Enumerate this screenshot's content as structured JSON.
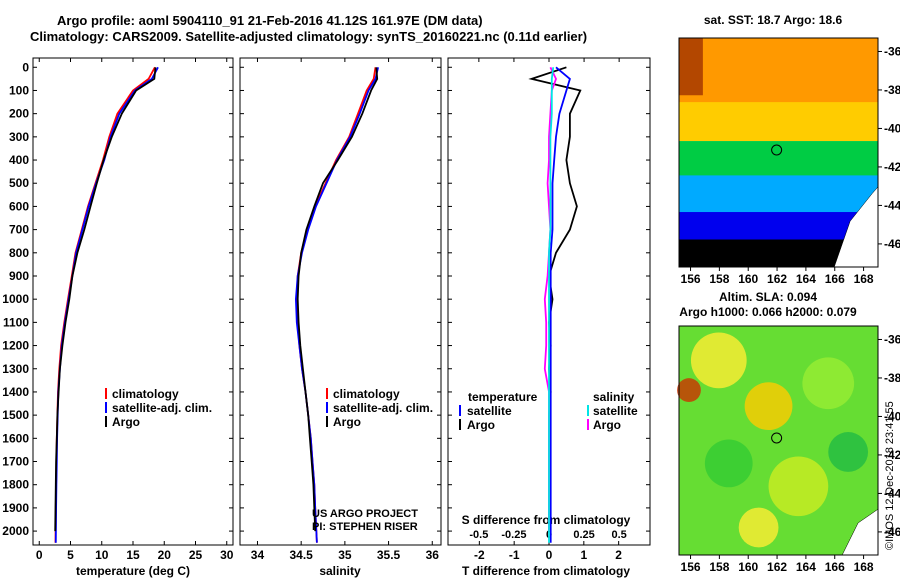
{
  "header": {
    "title_line1": "Argo profile: aoml 5904110_91 21-Feb-2016 41.12S 161.97E (DM data)",
    "title_line2": "Climatology: CARS2009. Satellite-adjusted climatology: synTS_20160221.nc (0.11d earlier)"
  },
  "side_stamp": "©IMOS 12-Dec-2018 23:41:55",
  "colors": {
    "climatology": "#ff0000",
    "satellite": "#0000ff",
    "argo": "#000000",
    "sat_t_diff": "#0000ff",
    "sat_s_diff": "#00e5e5",
    "argo_s_diff": "#ff00ff"
  },
  "panels": {
    "temperature": {
      "xlabel": "temperature (deg C)",
      "ticks": [
        "0",
        "5",
        "10",
        "15",
        "20",
        "25",
        "30"
      ],
      "legend": [
        "climatology",
        "satellite-adj. clim.",
        "Argo"
      ]
    },
    "salinity": {
      "xlabel": "salinity",
      "ticks": [
        "34",
        "34.5",
        "35",
        "35.5",
        "36"
      ],
      "legend": [
        "climatology",
        "satellite-adj. clim.",
        "Argo"
      ],
      "credit1": "US ARGO PROJECT",
      "credit2": "PI: STEPHEN RISER"
    },
    "difference": {
      "xlabel": "T difference from climatology",
      "s_label": "S difference from climatology",
      "t_ticks": [
        "-2",
        "-1",
        "0",
        "1",
        "2"
      ],
      "s_ticks": [
        "-0.5",
        "-0.25",
        "0",
        "0.25",
        "0.5"
      ],
      "legend_t_head": "temperature",
      "legend_s_head": "salinity",
      "legend_satellite": "satellite",
      "legend_argo": "Argo"
    }
  },
  "depth_ticks": [
    "0",
    "100",
    "200",
    "300",
    "400",
    "500",
    "600",
    "700",
    "800",
    "900",
    "1000",
    "1100",
    "1200",
    "1300",
    "1400",
    "1500",
    "1600",
    "1700",
    "1800",
    "1900",
    "2000"
  ],
  "maps": {
    "sst_title": "sat. SST: 18.7 Argo: 18.6",
    "sla_title1": "Altim. SLA: 0.094",
    "sla_title2": "Argo h1000: 0.066 h2000: 0.079",
    "lat_ticks": [
      "-36",
      "-38",
      "-40",
      "-42",
      "-44",
      "-46"
    ],
    "lon_ticks": [
      "156",
      "158",
      "160",
      "162",
      "164",
      "166",
      "168"
    ]
  },
  "chart_data": [
    {
      "type": "line",
      "title": "",
      "xlabel": "temperature (deg C)",
      "ylabel": "",
      "xlim": [
        -1,
        31
      ],
      "ylim": [
        2060,
        -40
      ],
      "series": [
        {
          "name": "climatology",
          "x": [
            18.5,
            17.5,
            15.0,
            12.5,
            11.2,
            10.2,
            9.0,
            7.8,
            6.8,
            5.8,
            5.2,
            4.6,
            4.0,
            3.5,
            3.2,
            3.0,
            2.9,
            2.8,
            2.75,
            2.7,
            2.65,
            2.6
          ],
          "y": [
            0,
            50,
            100,
            200,
            300,
            400,
            500,
            600,
            700,
            800,
            900,
            1000,
            1100,
            1200,
            1300,
            1400,
            1500,
            1600,
            1700,
            1800,
            1900,
            2050
          ]
        },
        {
          "name": "satellite-adj. clim.",
          "x": [
            19.0,
            18.0,
            15.3,
            12.8,
            11.4,
            10.4,
            9.1,
            7.9,
            6.9,
            5.9,
            5.3,
            4.7,
            4.1,
            3.6,
            3.3,
            3.05,
            2.95,
            2.85,
            2.8,
            2.75,
            2.7,
            2.65
          ],
          "y": [
            0,
            50,
            100,
            200,
            300,
            400,
            500,
            600,
            700,
            800,
            900,
            1000,
            1100,
            1200,
            1300,
            1400,
            1500,
            1600,
            1700,
            1800,
            1900,
            2050
          ]
        },
        {
          "name": "Argo",
          "x": [
            18.6,
            18.4,
            15.5,
            13.2,
            11.6,
            10.3,
            9.2,
            8.2,
            7.2,
            6.1,
            5.3,
            4.8,
            4.2,
            3.7,
            3.3,
            3.1,
            2.9,
            2.8,
            2.7,
            2.65,
            2.6,
            2.55
          ],
          "y": [
            0,
            50,
            100,
            200,
            300,
            400,
            500,
            600,
            700,
            800,
            900,
            1000,
            1100,
            1200,
            1300,
            1400,
            1500,
            1600,
            1700,
            1800,
            1900,
            2000
          ]
        }
      ]
    },
    {
      "type": "line",
      "title": "",
      "xlabel": "salinity",
      "ylabel": "",
      "xlim": [
        33.8,
        36.1
      ],
      "ylim": [
        2060,
        -40
      ],
      "series": [
        {
          "name": "climatology",
          "x": [
            35.35,
            35.33,
            35.25,
            35.15,
            35.05,
            34.9,
            34.78,
            34.66,
            34.57,
            34.5,
            34.46,
            34.45,
            34.46,
            34.48,
            34.51,
            34.55,
            34.58,
            34.61,
            34.63,
            34.65,
            34.66,
            34.68
          ],
          "y": [
            0,
            50,
            100,
            200,
            300,
            400,
            500,
            600,
            700,
            800,
            900,
            1000,
            1100,
            1200,
            1300,
            1400,
            1500,
            1600,
            1700,
            1800,
            1900,
            2050
          ]
        },
        {
          "name": "satellite-adj. clim.",
          "x": [
            35.38,
            35.35,
            35.27,
            35.17,
            35.06,
            34.91,
            34.79,
            34.67,
            34.58,
            34.51,
            34.46,
            34.44,
            34.45,
            34.48,
            34.51,
            34.55,
            34.58,
            34.61,
            34.63,
            34.65,
            34.66,
            34.68
          ],
          "y": [
            0,
            50,
            100,
            200,
            300,
            400,
            500,
            600,
            700,
            800,
            900,
            1000,
            1100,
            1200,
            1300,
            1400,
            1500,
            1600,
            1700,
            1800,
            1900,
            2050
          ]
        },
        {
          "name": "Argo",
          "x": [
            35.36,
            35.37,
            35.3,
            35.2,
            35.08,
            34.92,
            34.75,
            34.65,
            34.56,
            34.5,
            34.47,
            34.46,
            34.47,
            34.49,
            34.52,
            34.55,
            34.58,
            34.6,
            34.62,
            34.64,
            34.65,
            34.66
          ],
          "y": [
            0,
            50,
            100,
            200,
            300,
            400,
            500,
            600,
            700,
            800,
            900,
            1000,
            1100,
            1200,
            1300,
            1400,
            1500,
            1600,
            1700,
            1800,
            1900,
            2000
          ]
        }
      ]
    },
    {
      "type": "line",
      "title": "",
      "xlabel": "T difference from climatology",
      "ylabel": "",
      "xlim": [
        -2.9,
        2.9
      ],
      "ylim": [
        2060,
        -40
      ],
      "series": [
        {
          "name": "temperature satellite",
          "x": [
            0.2,
            0.6,
            0.5,
            0.3,
            0.2,
            0.15,
            0.1,
            0.1,
            0.1,
            0.05,
            0.05,
            0.05,
            0.05,
            0.05,
            0.05,
            0.05,
            0.05,
            0.05,
            0.05,
            0.05,
            0.05,
            0.05
          ],
          "y": [
            0,
            50,
            100,
            200,
            300,
            400,
            500,
            600,
            700,
            800,
            900,
            1000,
            1100,
            1200,
            1300,
            1400,
            1500,
            1600,
            1700,
            1800,
            1900,
            2050
          ]
        },
        {
          "name": "temperature Argo",
          "x": [
            0.5,
            -0.5,
            0.9,
            0.6,
            0.6,
            0.5,
            0.6,
            0.8,
            0.6,
            0.2,
            0.0,
            0.1,
            0.0,
            0.05,
            0.0,
            0.05,
            0.0,
            0.0,
            0.0,
            0.0,
            0.0,
            0.0
          ],
          "y": [
            0,
            50,
            100,
            200,
            300,
            400,
            500,
            600,
            700,
            800,
            900,
            1000,
            1100,
            1200,
            1300,
            1400,
            1500,
            1600,
            1700,
            1800,
            1900,
            2000
          ]
        }
      ]
    },
    {
      "type": "line",
      "title": "",
      "xlabel": "S difference from climatology",
      "ylabel": "",
      "xlim": [
        -0.72,
        0.72
      ],
      "ylim": [
        2060,
        -40
      ],
      "series": [
        {
          "name": "salinity satellite",
          "x": [
            0.03,
            0.02,
            0.02,
            0.02,
            0.01,
            0.01,
            0.01,
            0.01,
            0.01,
            0.0,
            0.0,
            0.0,
            0.0,
            0.0,
            0.0,
            0.0,
            0.0,
            0.0,
            0.0,
            0.0,
            0.0,
            0.0
          ],
          "y": [
            0,
            50,
            100,
            200,
            300,
            400,
            500,
            600,
            700,
            800,
            900,
            1000,
            1100,
            1200,
            1300,
            1400,
            1500,
            1600,
            1700,
            1800,
            1900,
            2050
          ]
        },
        {
          "name": "salinity Argo",
          "x": [
            0.01,
            0.05,
            0.02,
            0.01,
            0.0,
            0.0,
            -0.01,
            0.0,
            0.01,
            0.0,
            -0.01,
            -0.03,
            -0.02,
            -0.02,
            -0.03,
            0.0,
            0.0,
            0.0,
            0.0,
            0.0,
            0.0,
            0.0
          ],
          "y": [
            0,
            50,
            100,
            200,
            300,
            400,
            500,
            600,
            700,
            800,
            900,
            1000,
            1100,
            1200,
            1300,
            1400,
            1500,
            1600,
            1700,
            1800,
            1900,
            2000
          ]
        }
      ]
    }
  ]
}
